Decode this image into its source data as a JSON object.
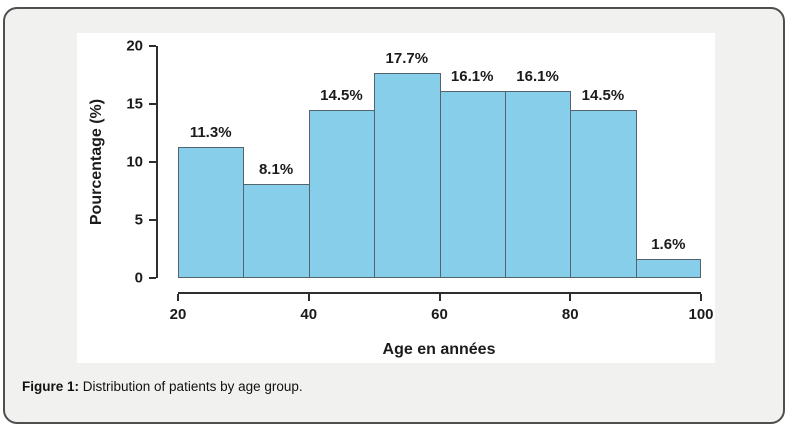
{
  "figure": {
    "caption_label": "Figure 1:",
    "caption_text": " Distribution of patients by age group."
  },
  "chart_data": {
    "type": "bar",
    "subtype": "histogram",
    "title": "",
    "xlabel": "Age en années",
    "ylabel": "Pourcentage (%)",
    "bin_edges": [
      20,
      30,
      40,
      50,
      60,
      70,
      80,
      90,
      100
    ],
    "categories": [
      "20-30",
      "30-40",
      "40-50",
      "50-60",
      "60-70",
      "70-80",
      "80-90",
      "90-100"
    ],
    "values": [
      11.3,
      8.1,
      14.5,
      17.7,
      16.1,
      16.1,
      14.5,
      1.6
    ],
    "bar_labels": [
      "11.3%",
      "8.1%",
      "14.5%",
      "17.7%",
      "16.1%",
      "16.1%",
      "14.5%",
      "1.6%"
    ],
    "xticks": [
      20,
      40,
      60,
      80,
      100
    ],
    "yticks": [
      0,
      5,
      10,
      15,
      20
    ],
    "xlim": [
      20,
      100
    ],
    "ylim": [
      0,
      20
    ],
    "grid": false,
    "legend": null,
    "bar_color": "#87CEEB",
    "bar_border_color": "#55646c",
    "axis_color": "#2e2e2e",
    "text_color": "#1b1b1b"
  }
}
